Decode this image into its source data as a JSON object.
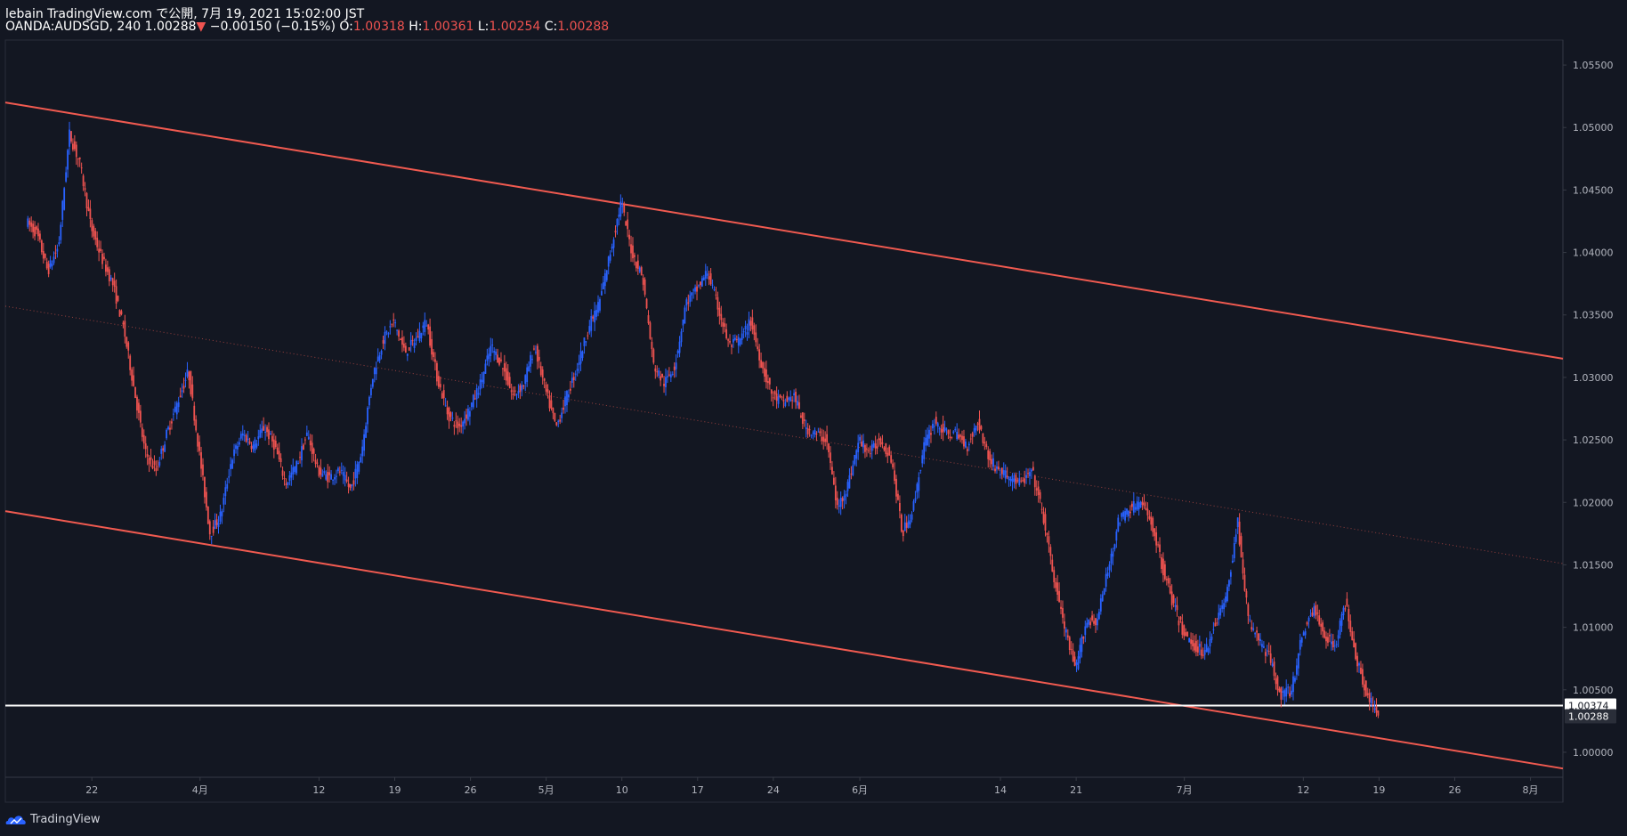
{
  "header": {
    "line1": "lebain TradingView.com で公開, 7月 19, 2021 15:02:00 JST",
    "symbol": "OANDA:AUDSGD, 240",
    "last": "1.00288",
    "change": "−0.00150 (−0.15%)",
    "o_label": "O:",
    "o_value": "1.00318",
    "h_label": "H:",
    "h_value": "1.00361",
    "l_label": "L:",
    "l_value": "1.00254",
    "c_label": "C:",
    "c_value": "1.00288"
  },
  "footer": {
    "brand": "TradingView"
  },
  "colors": {
    "background": "#131722",
    "up": "#2962ff",
    "down": "#ef5350",
    "channel": "#f05a50",
    "support": "#ffffff"
  },
  "chart_data": {
    "type": "candlestick",
    "symbol": "OANDA:AUDSGD",
    "timeframe": "240",
    "y_ticks": [
      "1.05500",
      "1.05000",
      "1.04500",
      "1.04000",
      "1.03500",
      "1.03000",
      "1.02500",
      "1.02000",
      "1.01500",
      "1.01000",
      "1.00500",
      "1.00000"
    ],
    "ylim": [
      0.998,
      1.057
    ],
    "x_ticks": [
      "22",
      "4月",
      "12",
      "19",
      "26",
      "5月",
      "10",
      "17",
      "24",
      "6月",
      "14",
      "21",
      "7月",
      "12",
      "19",
      "26",
      "8月"
    ],
    "x_tick_dates": [
      "2021-03-22",
      "2021-04-01",
      "2021-04-12",
      "2021-04-19",
      "2021-04-26",
      "2021-05-03",
      "2021-05-10",
      "2021-05-17",
      "2021-05-24",
      "2021-06-01",
      "2021-06-14",
      "2021-06-21",
      "2021-07-01",
      "2021-07-12",
      "2021-07-19",
      "2021-07-26",
      "2021-08-02"
    ],
    "price_labels": [
      {
        "label": "1.00374",
        "value": 1.00374
      },
      {
        "label": "1.00288",
        "value": 1.00288
      }
    ],
    "path_points": [
      [
        "2021-03-16",
        1.0425
      ],
      [
        "2021-03-17",
        1.0415
      ],
      [
        "2021-03-18",
        1.0385
      ],
      [
        "2021-03-19",
        1.0405
      ],
      [
        "2021-03-20",
        1.0495
      ],
      [
        "2021-03-21",
        1.047
      ],
      [
        "2021-03-22",
        1.042
      ],
      [
        "2021-03-23",
        1.0395
      ],
      [
        "2021-03-24",
        1.0375
      ],
      [
        "2021-03-25",
        1.034
      ],
      [
        "2021-03-26",
        1.029
      ],
      [
        "2021-03-27",
        1.024
      ],
      [
        "2021-03-28",
        1.0225
      ],
      [
        "2021-03-29",
        1.0255
      ],
      [
        "2021-03-30",
        1.028
      ],
      [
        "2021-03-31",
        1.0305
      ],
      [
        "2021-04-01",
        1.024
      ],
      [
        "2021-04-02",
        1.0175
      ],
      [
        "2021-04-03",
        1.019
      ],
      [
        "2021-04-04",
        1.0235
      ],
      [
        "2021-04-05",
        1.0255
      ],
      [
        "2021-04-06",
        1.0245
      ],
      [
        "2021-04-07",
        1.026
      ],
      [
        "2021-04-08",
        1.0245
      ],
      [
        "2021-04-09",
        1.0215
      ],
      [
        "2021-04-10",
        1.023
      ],
      [
        "2021-04-11",
        1.0255
      ],
      [
        "2021-04-12",
        1.0225
      ],
      [
        "2021-04-13",
        1.022
      ],
      [
        "2021-04-14",
        1.0225
      ],
      [
        "2021-04-15",
        1.021
      ],
      [
        "2021-04-16",
        1.024
      ],
      [
        "2021-04-17",
        1.03
      ],
      [
        "2021-04-18",
        1.033
      ],
      [
        "2021-04-19",
        1.0345
      ],
      [
        "2021-04-20",
        1.032
      ],
      [
        "2021-04-21",
        1.033
      ],
      [
        "2021-04-22",
        1.0345
      ],
      [
        "2021-04-23",
        1.03
      ],
      [
        "2021-04-24",
        1.027
      ],
      [
        "2021-04-25",
        1.026
      ],
      [
        "2021-04-26",
        1.0275
      ],
      [
        "2021-04-27",
        1.0295
      ],
      [
        "2021-04-28",
        1.0325
      ],
      [
        "2021-04-29",
        1.031
      ],
      [
        "2021-04-30",
        1.0285
      ],
      [
        "2021-05-01",
        1.0295
      ],
      [
        "2021-05-02",
        1.0325
      ],
      [
        "2021-05-03",
        1.029
      ],
      [
        "2021-05-04",
        1.026
      ],
      [
        "2021-05-05",
        1.0285
      ],
      [
        "2021-05-06",
        1.031
      ],
      [
        "2021-05-07",
        1.034
      ],
      [
        "2021-05-08",
        1.036
      ],
      [
        "2021-05-09",
        1.04
      ],
      [
        "2021-05-10",
        1.044
      ],
      [
        "2021-05-11",
        1.04
      ],
      [
        "2021-05-12",
        1.038
      ],
      [
        "2021-05-13",
        1.031
      ],
      [
        "2021-05-14",
        1.0295
      ],
      [
        "2021-05-15",
        1.031
      ],
      [
        "2021-05-16",
        1.036
      ],
      [
        "2021-05-17",
        1.037
      ],
      [
        "2021-05-18",
        1.0385
      ],
      [
        "2021-05-19",
        1.0355
      ],
      [
        "2021-05-20",
        1.0325
      ],
      [
        "2021-05-21",
        1.033
      ],
      [
        "2021-05-22",
        1.0345
      ],
      [
        "2021-05-23",
        1.031
      ],
      [
        "2021-05-24",
        1.0285
      ],
      [
        "2021-05-25",
        1.028
      ],
      [
        "2021-05-26",
        1.0285
      ],
      [
        "2021-05-27",
        1.026
      ],
      [
        "2021-05-28",
        1.0255
      ],
      [
        "2021-05-29",
        1.025
      ],
      [
        "2021-05-30",
        1.0195
      ],
      [
        "2021-05-31",
        1.0215
      ],
      [
        "2021-06-01",
        1.025
      ],
      [
        "2021-06-02",
        1.024
      ],
      [
        "2021-06-03",
        1.025
      ],
      [
        "2021-06-04",
        1.0235
      ],
      [
        "2021-06-05",
        1.0175
      ],
      [
        "2021-06-06",
        1.0195
      ],
      [
        "2021-06-07",
        1.0245
      ],
      [
        "2021-06-08",
        1.0265
      ],
      [
        "2021-06-09",
        1.0255
      ],
      [
        "2021-06-10",
        1.0255
      ],
      [
        "2021-06-11",
        1.0245
      ],
      [
        "2021-06-12",
        1.0265
      ],
      [
        "2021-06-13",
        1.0235
      ],
      [
        "2021-06-14",
        1.0225
      ],
      [
        "2021-06-15",
        1.022
      ],
      [
        "2021-06-16",
        1.0215
      ],
      [
        "2021-06-17",
        1.0225
      ],
      [
        "2021-06-18",
        1.019
      ],
      [
        "2021-06-19",
        1.014
      ],
      [
        "2021-06-20",
        1.01
      ],
      [
        "2021-06-21",
        1.0065
      ],
      [
        "2021-06-22",
        1.0105
      ],
      [
        "2021-06-23",
        1.0105
      ],
      [
        "2021-06-24",
        1.0145
      ],
      [
        "2021-06-25",
        1.0185
      ],
      [
        "2021-06-26",
        1.0195
      ],
      [
        "2021-06-27",
        1.02
      ],
      [
        "2021-06-28",
        1.0185
      ],
      [
        "2021-06-29",
        1.015
      ],
      [
        "2021-06-30",
        1.012
      ],
      [
        "2021-07-01",
        1.0095
      ],
      [
        "2021-07-02",
        1.0085
      ],
      [
        "2021-07-03",
        1.008
      ],
      [
        "2021-07-04",
        1.0105
      ],
      [
        "2021-07-05",
        1.0125
      ],
      [
        "2021-07-06",
        1.0185
      ],
      [
        "2021-07-07",
        1.0105
      ],
      [
        "2021-07-08",
        1.009
      ],
      [
        "2021-07-09",
        1.0075
      ],
      [
        "2021-07-10",
        1.0045
      ],
      [
        "2021-07-11",
        1.005
      ],
      [
        "2021-07-12",
        1.0095
      ],
      [
        "2021-07-13",
        1.0115
      ],
      [
        "2021-07-14",
        1.0095
      ],
      [
        "2021-07-15",
        1.0085
      ],
      [
        "2021-07-16",
        1.012
      ],
      [
        "2021-07-17",
        1.0075
      ],
      [
        "2021-07-18",
        1.0045
      ],
      [
        "2021-07-19",
        1.0029
      ]
    ],
    "trendlines": [
      {
        "from": [
          "2021-03-14",
          1.052
        ],
        "to": [
          "2021-08-05",
          1.0315
        ],
        "style": "solid"
      },
      {
        "from": [
          "2021-03-14",
          1.0193
        ],
        "to": [
          "2021-08-05",
          0.9987
        ],
        "style": "solid"
      },
      {
        "from": [
          "2021-03-14",
          1.0357
        ],
        "to": [
          "2021-08-05",
          1.0151
        ],
        "style": "dotted"
      },
      {
        "from": [
          "2021-03-14",
          1.00374
        ],
        "to": [
          "2021-08-05",
          1.00374
        ],
        "style": "horizontal"
      }
    ]
  }
}
